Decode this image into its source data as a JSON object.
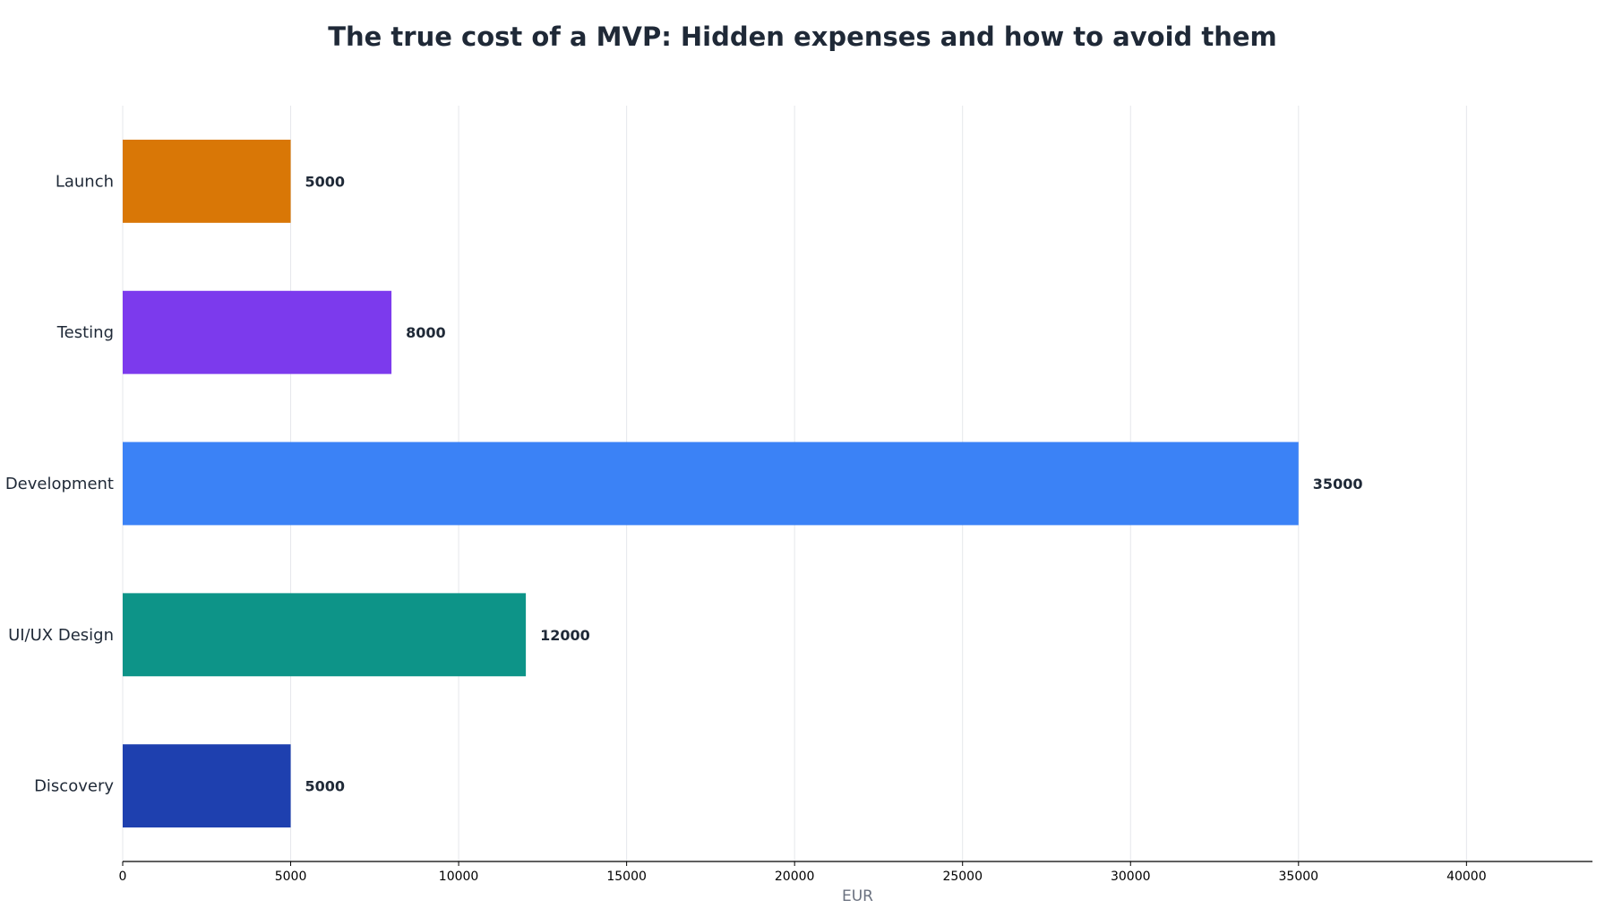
{
  "chart_data": {
    "type": "bar",
    "orientation": "horizontal",
    "title": "The true cost of a MVP: Hidden expenses and how to avoid them",
    "xlabel": "EUR",
    "ylabel": "",
    "categories": [
      "Discovery",
      "UI/UX Design",
      "Development",
      "Testing",
      "Launch"
    ],
    "values": [
      5000,
      12000,
      35000,
      8000,
      5000
    ],
    "colors": [
      "#1e40af",
      "#0d9488",
      "#3b82f6",
      "#7c3aed",
      "#d97706"
    ],
    "xlim": [
      0,
      43750
    ],
    "xticks": [
      0,
      5000,
      10000,
      15000,
      20000,
      25000,
      30000,
      35000,
      40000
    ],
    "grid": "vertical",
    "legend": "none"
  }
}
